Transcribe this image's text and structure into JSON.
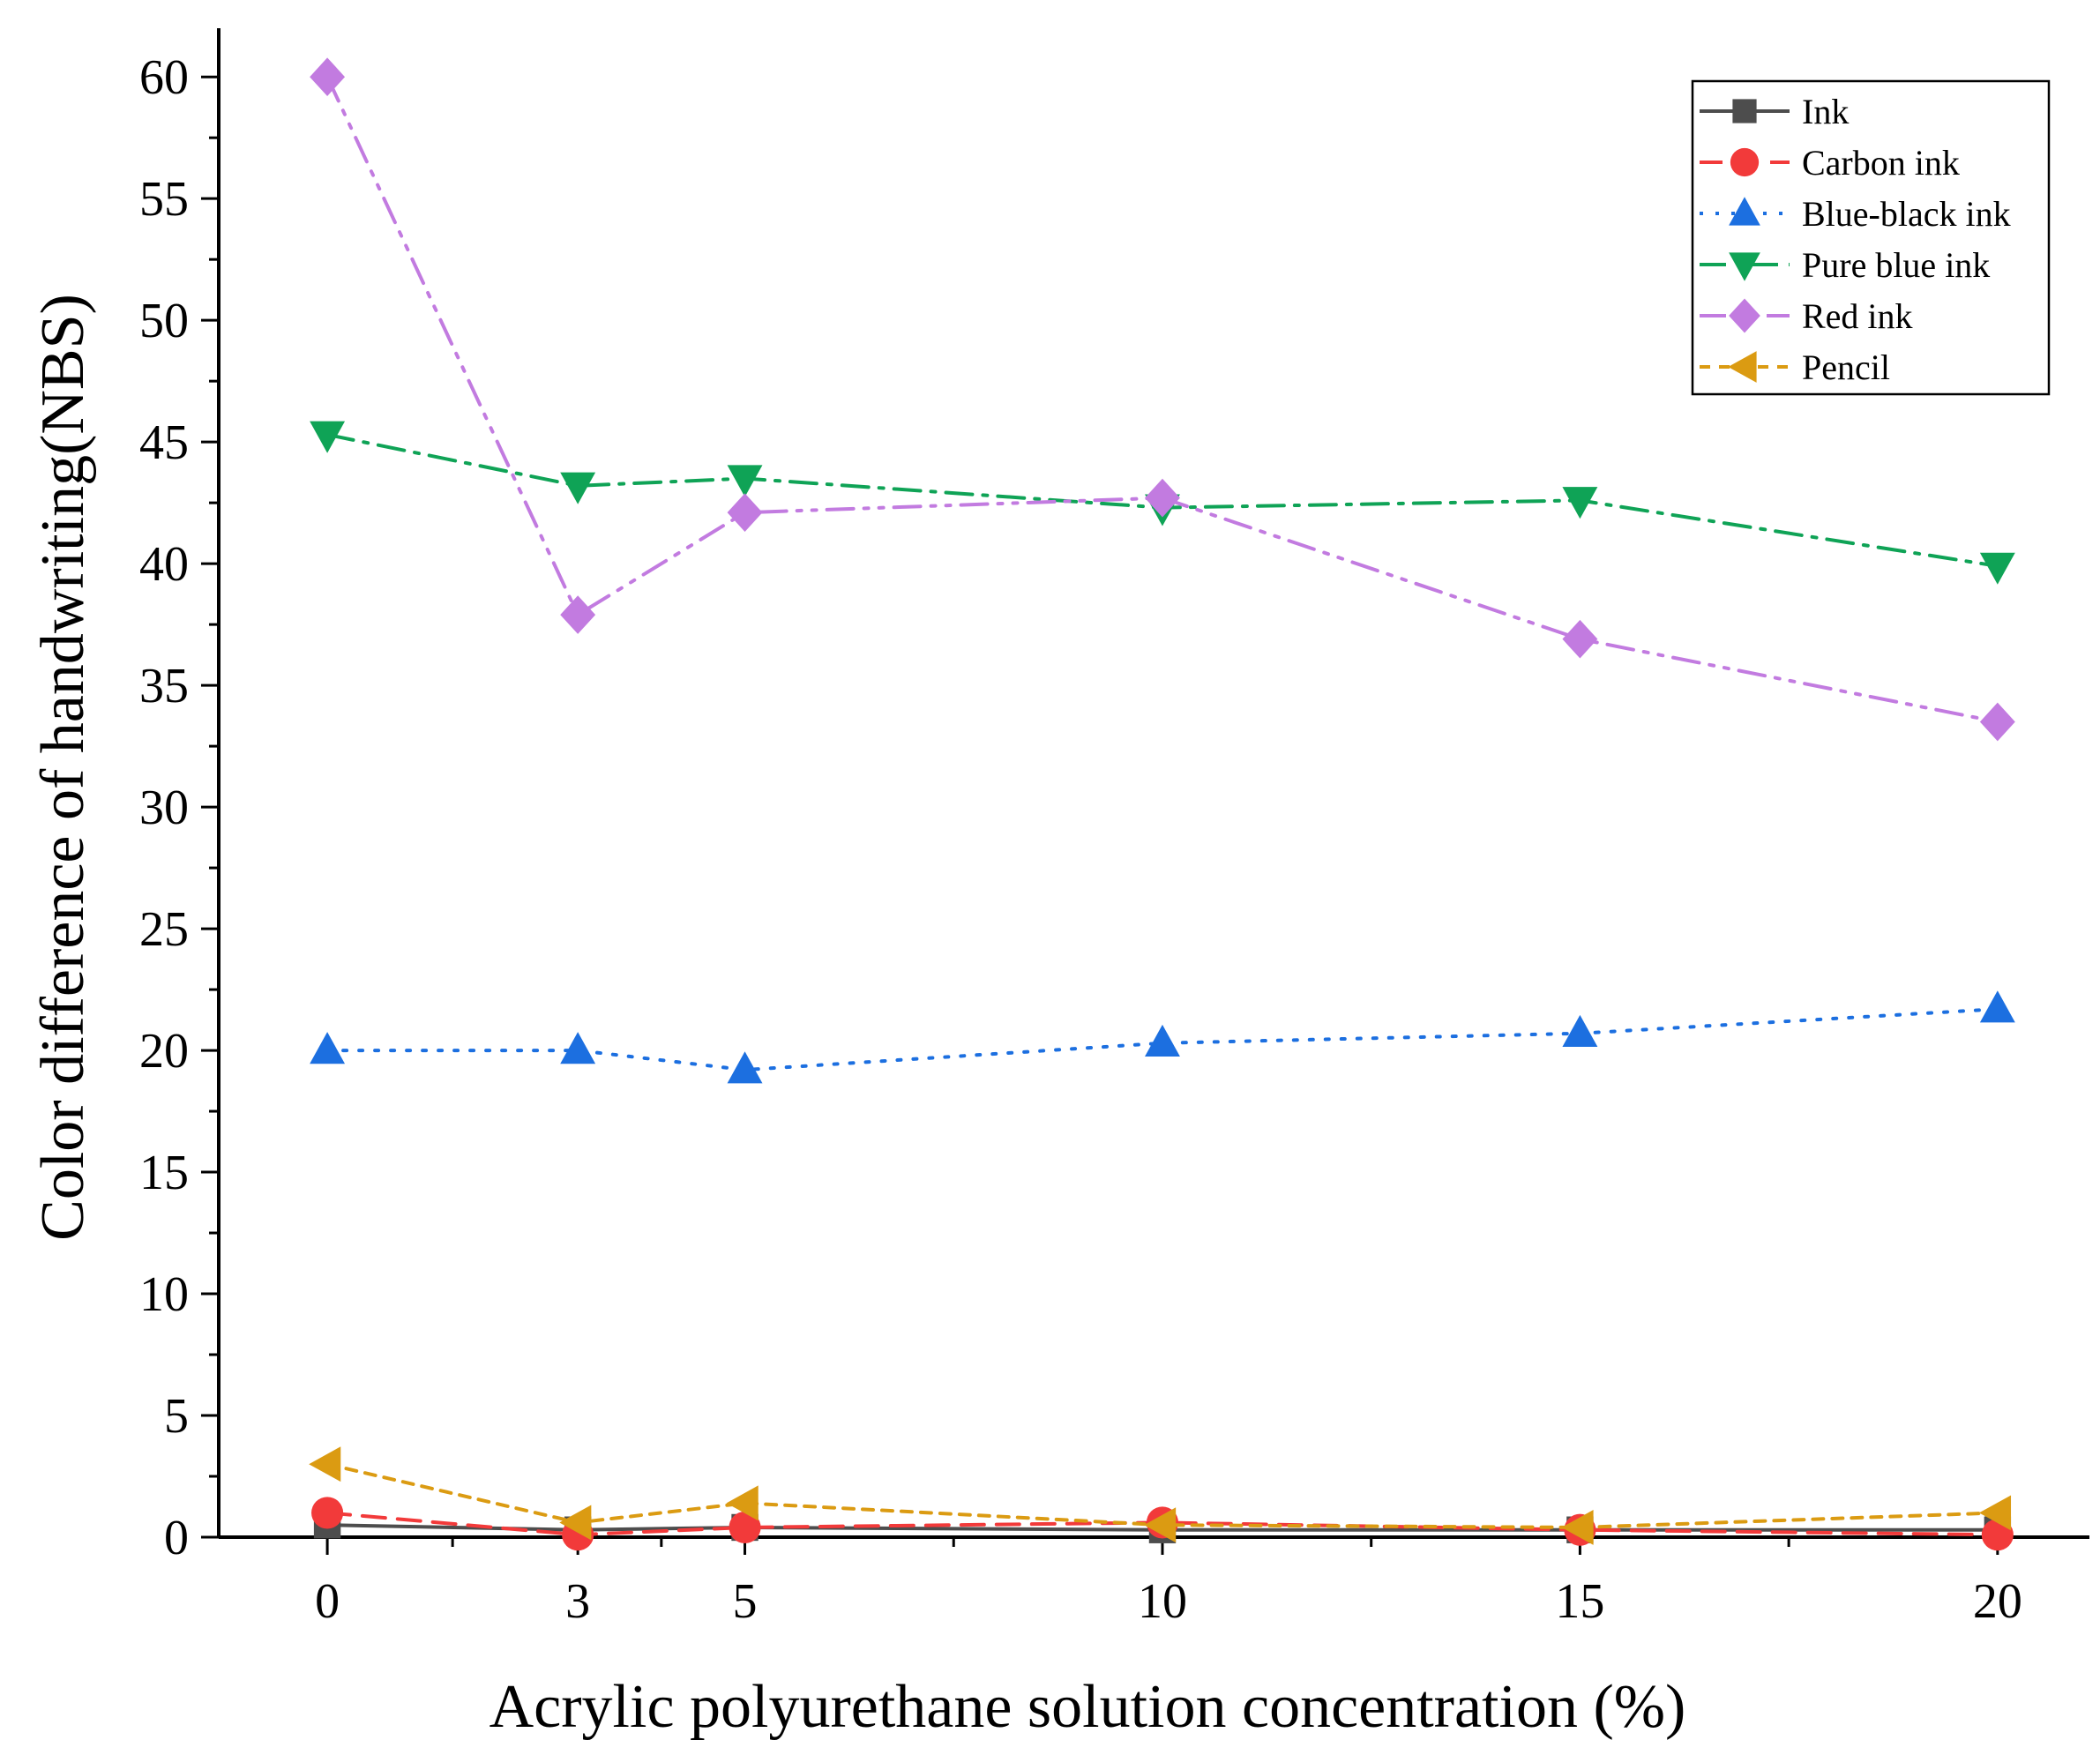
{
  "chart_data": {
    "type": "line",
    "xlabel": "Acrylic polyurethane solution concentration (%)",
    "ylabel": "Color difference of handwriting(NBS)",
    "x": [
      0,
      3,
      5,
      10,
      15,
      20
    ],
    "xlim": [
      -1.3,
      21.1
    ],
    "ylim": [
      0,
      62
    ],
    "xticks": [
      0,
      3,
      5,
      10,
      15,
      20
    ],
    "yticks": [
      0,
      5,
      10,
      15,
      20,
      25,
      30,
      35,
      40,
      45,
      50,
      55,
      60
    ],
    "grid": false,
    "legend_position": "top-right",
    "series": [
      {
        "name": "Ink",
        "values": [
          0.5,
          0.3,
          0.4,
          0.3,
          0.3,
          0.3
        ],
        "color": "#4d4d4d",
        "marker": "square",
        "dash": "solid"
      },
      {
        "name": "Carbon ink",
        "values": [
          1.0,
          0.1,
          0.4,
          0.6,
          0.3,
          0.1
        ],
        "color": "#f23a3a",
        "marker": "circle",
        "dash": "dash"
      },
      {
        "name": "Blue-black ink",
        "values": [
          20.0,
          20.0,
          19.2,
          20.3,
          20.7,
          21.7
        ],
        "color": "#1c6fe0",
        "marker": "triangle-up",
        "dash": "dot"
      },
      {
        "name": "Pure blue ink",
        "values": [
          45.3,
          43.2,
          43.5,
          42.3,
          42.6,
          39.9
        ],
        "color": "#0fa356",
        "marker": "triangle-down",
        "dash": "dashdot"
      },
      {
        "name": "Red ink",
        "values": [
          60.0,
          37.9,
          42.1,
          42.7,
          36.9,
          33.5
        ],
        "color": "#c27be0",
        "marker": "diamond",
        "dash": "dashdotdot"
      },
      {
        "name": "Pencil",
        "values": [
          3.0,
          0.6,
          1.4,
          0.5,
          0.4,
          1.0
        ],
        "color": "#db9b12",
        "marker": "triangle-left",
        "dash": "shortdash"
      }
    ]
  }
}
